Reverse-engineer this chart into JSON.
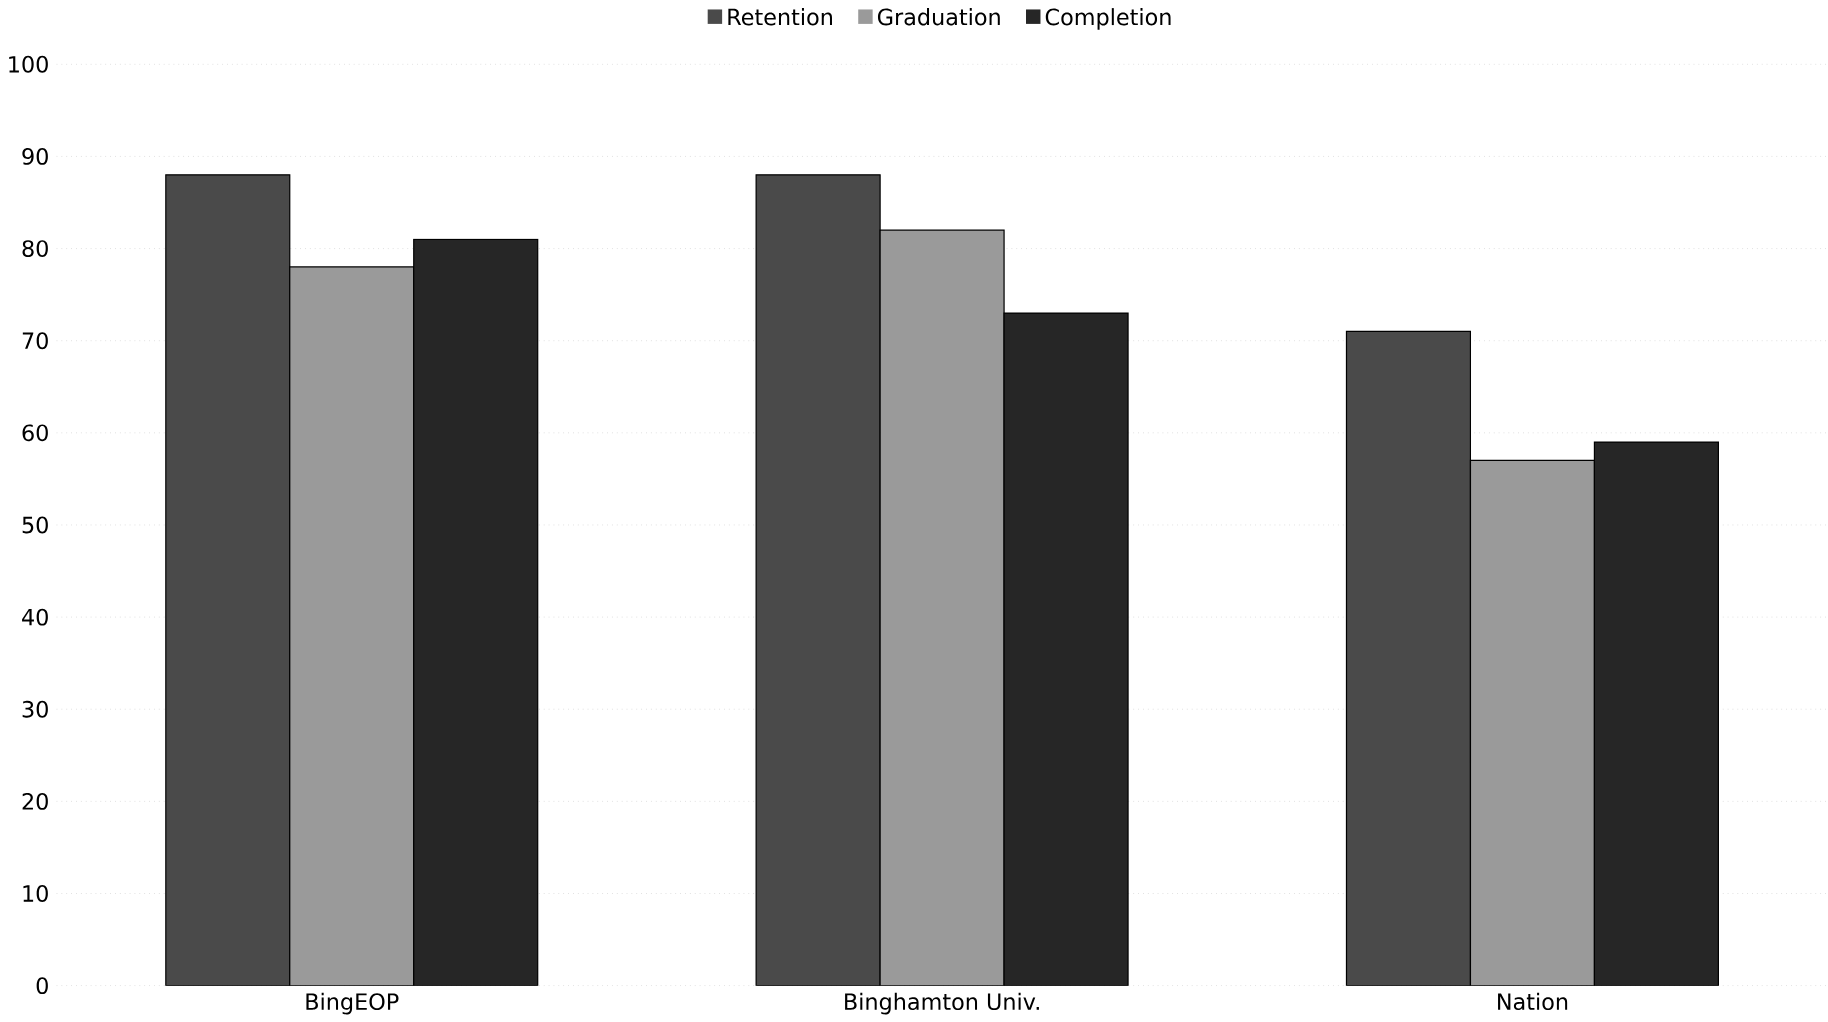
{
  "chart_data": {
    "type": "bar",
    "categories": [
      "BingEOP",
      "Binghamton Univ.",
      "Nation"
    ],
    "series": [
      {
        "name": "Retention",
        "color": "#4a4a4a",
        "values": [
          88,
          88,
          71
        ]
      },
      {
        "name": "Graduation",
        "color": "#9a9a9a",
        "values": [
          78,
          82,
          57
        ]
      },
      {
        "name": "Completion",
        "color": "#262626",
        "values": [
          81,
          73,
          59
        ]
      }
    ],
    "ylim": [
      0,
      100
    ],
    "yticks": [
      0,
      10,
      20,
      30,
      40,
      50,
      60,
      70,
      80,
      90,
      100
    ],
    "grid": "y",
    "legend": "top"
  }
}
